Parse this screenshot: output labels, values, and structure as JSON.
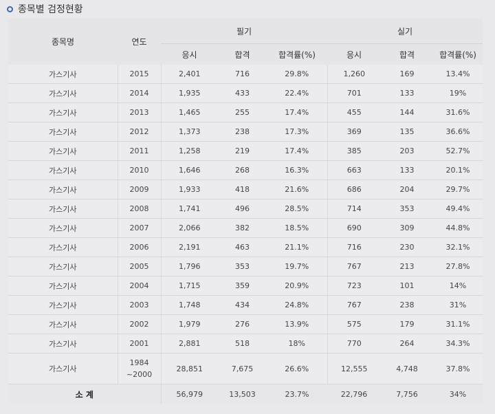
{
  "heading": "종목별 검정현황",
  "headers": {
    "name": "종목명",
    "year": "연도",
    "written": "필기",
    "practical": "실기",
    "applicants": "응시",
    "passed": "합격",
    "pass_rate": "합격률(%)"
  },
  "rows": [
    {
      "name": "가스기사",
      "year": "2015",
      "w_apply": "2,401",
      "w_pass": "716",
      "w_rate": "29.8%",
      "p_apply": "1,260",
      "p_pass": "169",
      "p_rate": "13.4%"
    },
    {
      "name": "가스기사",
      "year": "2014",
      "w_apply": "1,935",
      "w_pass": "433",
      "w_rate": "22.4%",
      "p_apply": "701",
      "p_pass": "133",
      "p_rate": "19%"
    },
    {
      "name": "가스기사",
      "year": "2013",
      "w_apply": "1,465",
      "w_pass": "255",
      "w_rate": "17.4%",
      "p_apply": "455",
      "p_pass": "144",
      "p_rate": "31.6%"
    },
    {
      "name": "가스기사",
      "year": "2012",
      "w_apply": "1,373",
      "w_pass": "238",
      "w_rate": "17.3%",
      "p_apply": "369",
      "p_pass": "135",
      "p_rate": "36.6%"
    },
    {
      "name": "가스기사",
      "year": "2011",
      "w_apply": "1,258",
      "w_pass": "219",
      "w_rate": "17.4%",
      "p_apply": "385",
      "p_pass": "203",
      "p_rate": "52.7%"
    },
    {
      "name": "가스기사",
      "year": "2010",
      "w_apply": "1,646",
      "w_pass": "268",
      "w_rate": "16.3%",
      "p_apply": "663",
      "p_pass": "133",
      "p_rate": "20.1%"
    },
    {
      "name": "가스기사",
      "year": "2009",
      "w_apply": "1,933",
      "w_pass": "418",
      "w_rate": "21.6%",
      "p_apply": "686",
      "p_pass": "204",
      "p_rate": "29.7%"
    },
    {
      "name": "가스기사",
      "year": "2008",
      "w_apply": "1,741",
      "w_pass": "496",
      "w_rate": "28.5%",
      "p_apply": "714",
      "p_pass": "353",
      "p_rate": "49.4%"
    },
    {
      "name": "가스기사",
      "year": "2007",
      "w_apply": "2,066",
      "w_pass": "382",
      "w_rate": "18.5%",
      "p_apply": "690",
      "p_pass": "309",
      "p_rate": "44.8%"
    },
    {
      "name": "가스기사",
      "year": "2006",
      "w_apply": "2,191",
      "w_pass": "463",
      "w_rate": "21.1%",
      "p_apply": "716",
      "p_pass": "230",
      "p_rate": "32.1%"
    },
    {
      "name": "가스기사",
      "year": "2005",
      "w_apply": "1,796",
      "w_pass": "353",
      "w_rate": "19.7%",
      "p_apply": "767",
      "p_pass": "213",
      "p_rate": "27.8%"
    },
    {
      "name": "가스기사",
      "year": "2004",
      "w_apply": "1,715",
      "w_pass": "359",
      "w_rate": "20.9%",
      "p_apply": "723",
      "p_pass": "101",
      "p_rate": "14%"
    },
    {
      "name": "가스기사",
      "year": "2003",
      "w_apply": "1,748",
      "w_pass": "434",
      "w_rate": "24.8%",
      "p_apply": "767",
      "p_pass": "238",
      "p_rate": "31%"
    },
    {
      "name": "가스기사",
      "year": "2002",
      "w_apply": "1,979",
      "w_pass": "276",
      "w_rate": "13.9%",
      "p_apply": "575",
      "p_pass": "179",
      "p_rate": "31.1%"
    },
    {
      "name": "가스기사",
      "year": "2001",
      "w_apply": "2,881",
      "w_pass": "518",
      "w_rate": "18%",
      "p_apply": "770",
      "p_pass": "264",
      "p_rate": "34.3%"
    },
    {
      "name": "가스기사",
      "year_line1": "1984",
      "year_line2": "~2000",
      "w_apply": "28,851",
      "w_pass": "7,675",
      "w_rate": "26.6%",
      "p_apply": "12,555",
      "p_pass": "4,748",
      "p_rate": "37.8%"
    }
  ],
  "total": {
    "label": "소 계",
    "w_apply": "56,979",
    "w_pass": "13,503",
    "w_rate": "23.7%",
    "p_apply": "22,796",
    "p_pass": "7,756",
    "p_rate": "34%"
  }
}
